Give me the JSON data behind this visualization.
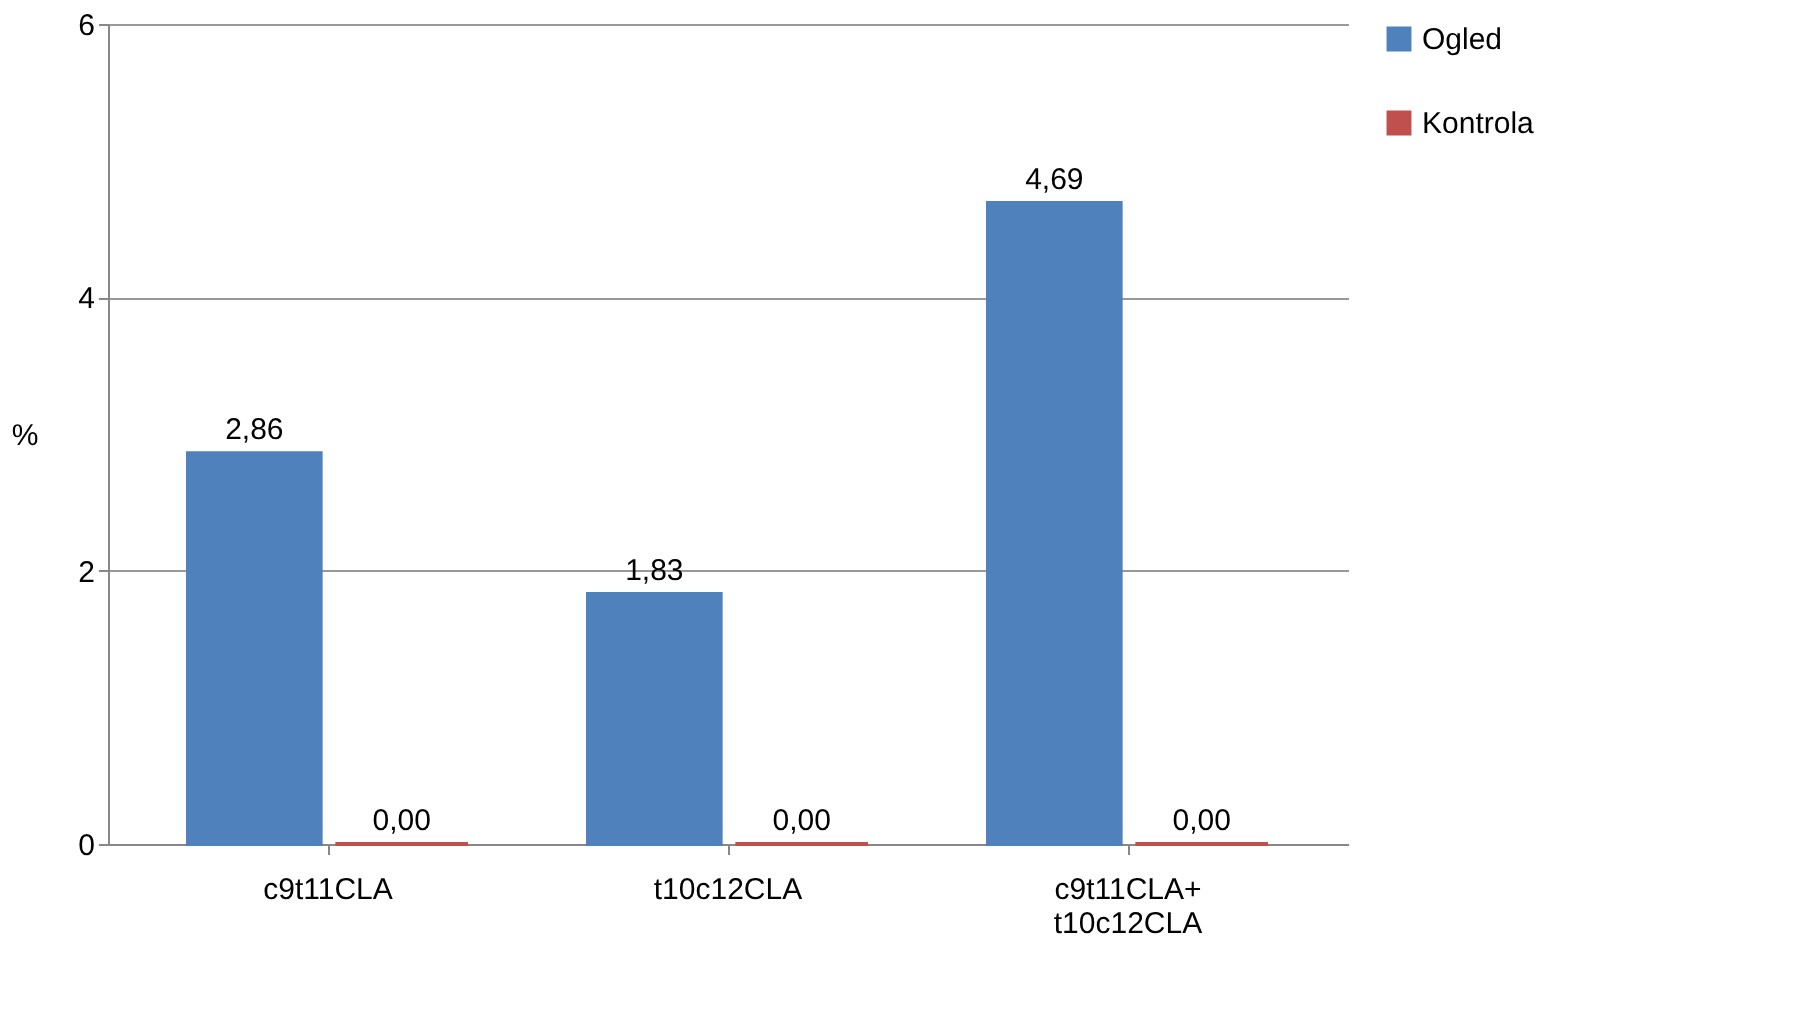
{
  "chart_data": {
    "type": "bar",
    "categories": [
      "c9t11CLA",
      "t10c12CLA",
      "c9t11CLA+ t10c12CLA"
    ],
    "series": [
      {
        "name": "Ogled",
        "color": "#4f81bd",
        "values": [
          2.86,
          1.83,
          4.69
        ],
        "value_labels": [
          "2,86",
          "1,83",
          "4,69"
        ]
      },
      {
        "name": "Kontrola",
        "color": "#c0504d",
        "values": [
          0,
          0,
          0
        ],
        "value_labels": [
          "0,00",
          "0,00",
          "0,00"
        ]
      }
    ],
    "ylabel": "%",
    "ylim": [
      0,
      6
    ],
    "yticks": [
      0,
      2,
      4,
      6
    ],
    "grid": "y",
    "legend": "right"
  }
}
